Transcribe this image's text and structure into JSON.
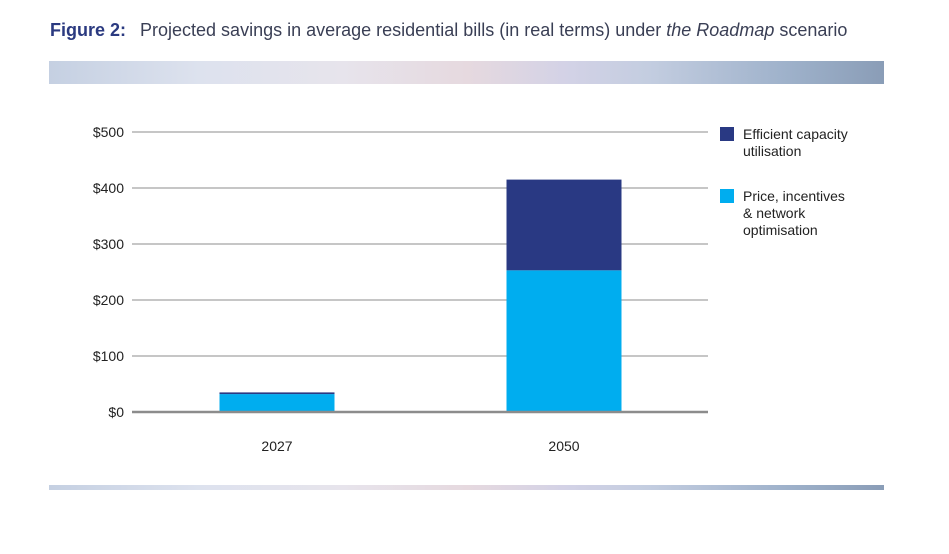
{
  "figure": {
    "label": "Figure 2:",
    "title_pre": "Projected savings in average residential bills (in real terms) under ",
    "title_em": "the Roadmap",
    "title_post": " scenario"
  },
  "colors": {
    "title_label": "#2b3a80",
    "series_dark": "#293983",
    "series_light": "#00adef",
    "gridline": "#8c8c8c",
    "axis": "#8c8c8c"
  },
  "chart_data": {
    "type": "bar",
    "stacked": true,
    "categories": [
      "2027",
      "2050"
    ],
    "series": [
      {
        "name": "Price, incentives & network optimisation",
        "legend_lines": [
          "Price, incentives",
          "& network",
          "optimisation"
        ],
        "values": [
          32,
          253
        ],
        "color": "#00adef"
      },
      {
        "name": "Efficient capacity utilisation",
        "legend_lines": [
          "Efficient capacity",
          "utilisation"
        ],
        "values": [
          3,
          162
        ],
        "color": "#293983"
      }
    ],
    "legend_order": [
      1,
      0
    ],
    "ylim": [
      0,
      500
    ],
    "yticks": [
      0,
      100,
      200,
      300,
      400,
      500
    ],
    "ytick_labels": [
      "$0",
      "$100",
      "$200",
      "$300",
      "$400",
      "$500"
    ],
    "grid": true,
    "legend_position": "right"
  }
}
